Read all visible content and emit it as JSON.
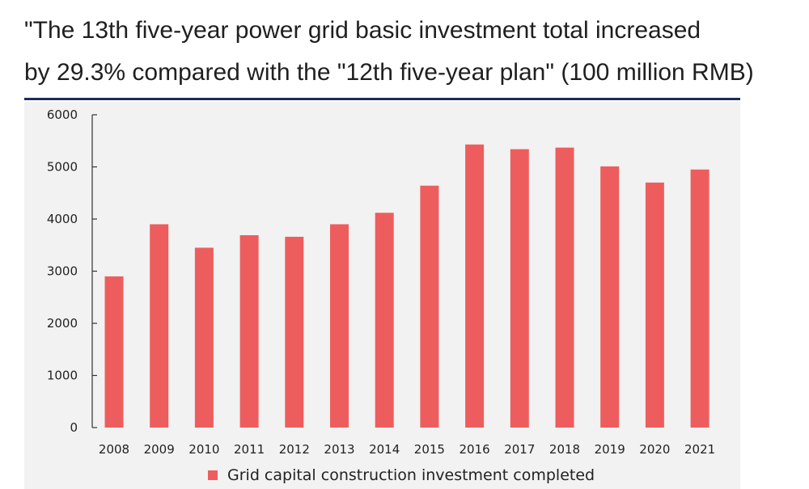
{
  "title": {
    "line1": "\"The 13th five-year power grid basic investment total increased",
    "line2": "by 29.3% compared with the \"12th five-year plan\" (100 million RMB)"
  },
  "colors": {
    "bar": "#ee5d5d",
    "axis": "#333333",
    "rule": "#1f2a5e",
    "panel": "#f2f2f2"
  },
  "chart_data": {
    "type": "bar",
    "categories": [
      "2008",
      "2009",
      "2010",
      "2011",
      "2012",
      "2013",
      "2014",
      "2015",
      "2016",
      "2017",
      "2018",
      "2019",
      "2020",
      "2021"
    ],
    "series": [
      {
        "name": "Grid capital construction investment completed",
        "values": [
          2900,
          3900,
          3450,
          3690,
          3660,
          3900,
          4120,
          4640,
          5430,
          5340,
          5370,
          5010,
          4700,
          4950
        ]
      }
    ],
    "yticks": [
      0,
      1000,
      2000,
      3000,
      4000,
      5000,
      6000
    ],
    "ylim": [
      0,
      6000
    ],
    "xlabel": "",
    "ylabel": "",
    "grid": false,
    "legend_position": "bottom"
  }
}
